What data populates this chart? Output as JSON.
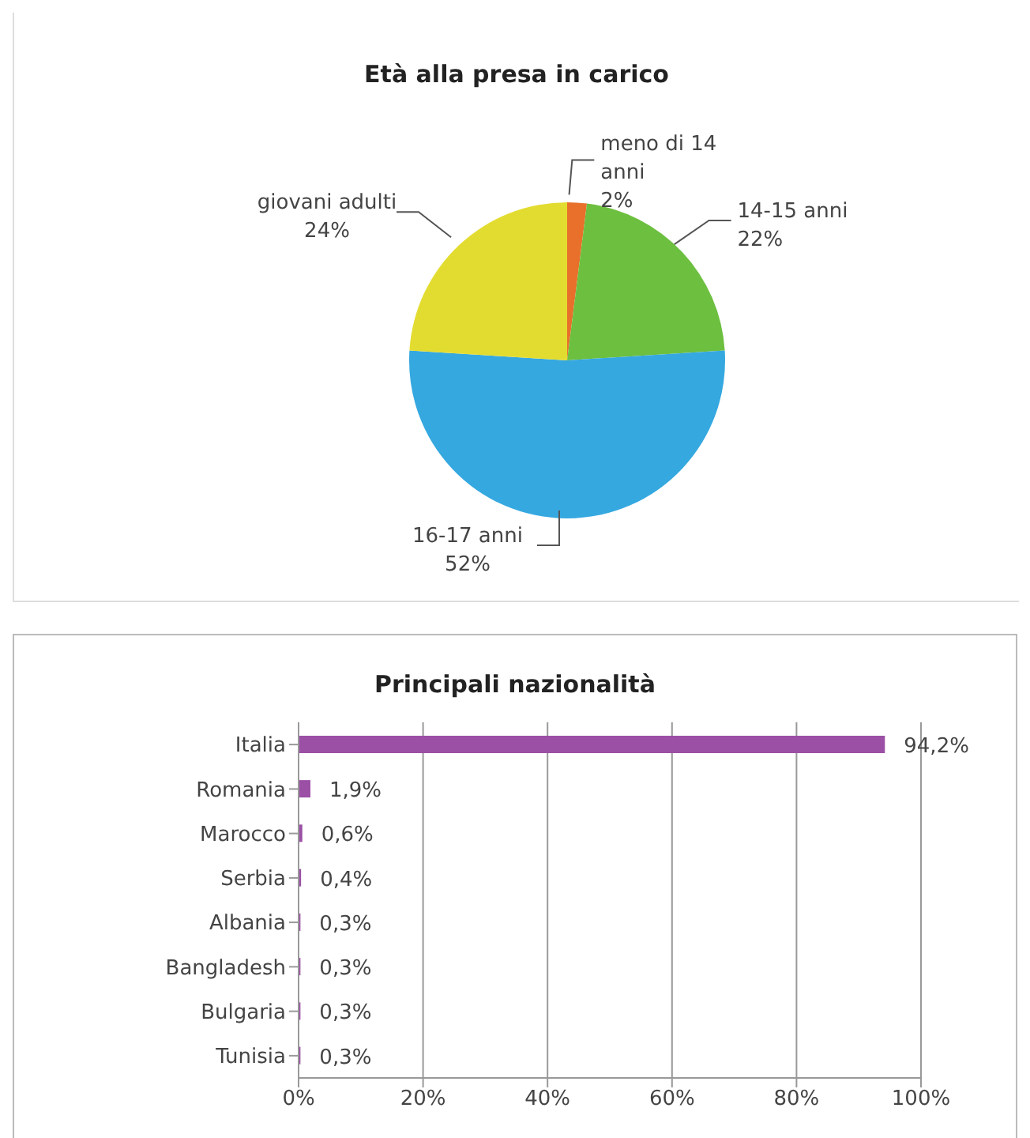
{
  "chart_data": [
    {
      "type": "pie",
      "title": "Età alla presa in carico",
      "categories": [
        "meno di 14 anni",
        "14-15 anni",
        "16-17 anni",
        "giovani adulti"
      ],
      "values": [
        2,
        22,
        52,
        24
      ],
      "value_labels": [
        "2%",
        "22%",
        "52%",
        "24%"
      ],
      "colors": [
        "#e8702a",
        "#6dbf3f",
        "#35a8e0",
        "#e3dc30"
      ],
      "legend": false
    },
    {
      "type": "bar",
      "orientation": "horizontal",
      "title": "Principali nazionalità",
      "categories": [
        "Italia",
        "Romania",
        "Marocco",
        "Serbia",
        "Albania",
        "Bangladesh",
        "Bulgaria",
        "Tunisia"
      ],
      "values": [
        94.2,
        1.9,
        0.6,
        0.4,
        0.3,
        0.3,
        0.3,
        0.3
      ],
      "value_labels": [
        "94,2%",
        "1,9%",
        "0,6%",
        "0,4%",
        "0,3%",
        "0,3%",
        "0,3%",
        "0,3%"
      ],
      "color": "#9b4fa5",
      "xlim": [
        0,
        100
      ],
      "xticks": [
        {
          "value": 0,
          "label": "0%"
        },
        {
          "value": 20,
          "label": "20%"
        },
        {
          "value": 40,
          "label": "40%"
        },
        {
          "value": 60,
          "label": "60%"
        },
        {
          "value": 80,
          "label": "80%"
        },
        {
          "value": 100,
          "label": "100%"
        }
      ],
      "grid": "x",
      "legend": false
    }
  ]
}
